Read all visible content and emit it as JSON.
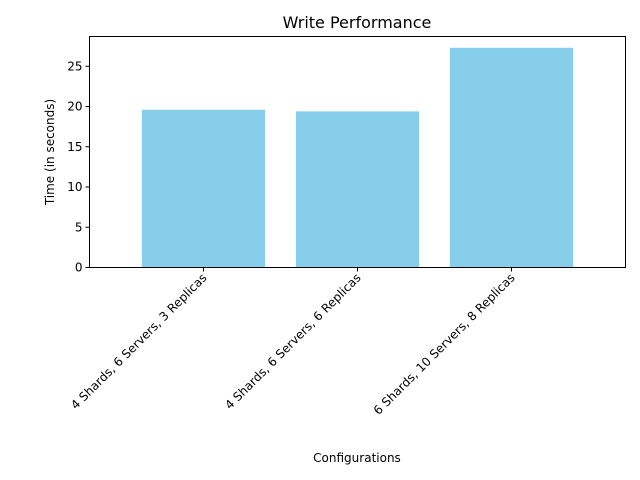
{
  "chart_data": {
    "type": "bar",
    "title": "Write Performance",
    "xlabel": "Configurations",
    "ylabel": "Time (in seconds)",
    "categories": [
      "4 Shards, 6 Servers, 3 Replicas",
      "4 Shards, 6 Servers, 6 Replicas",
      "6 Shards, 10 Servers, 8 Replicas"
    ],
    "values": [
      19.6,
      19.4,
      27.3
    ],
    "ylim": [
      0,
      28.7
    ],
    "yticks": [
      0,
      5,
      10,
      15,
      20,
      25
    ],
    "bar_color": "#87CEEB",
    "grid": false,
    "legend": "none"
  }
}
